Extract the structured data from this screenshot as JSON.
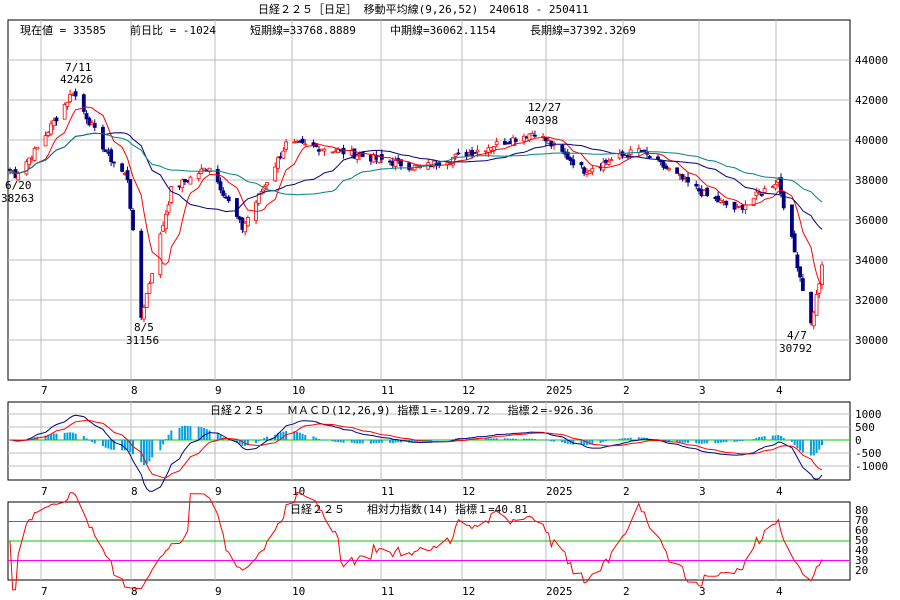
{
  "title": "日経２２５［日足］ 移動平均線(9,26,52)　240618 - 250411",
  "info": {
    "current": "現在値 = 33585",
    "change": "前日比 = -1024",
    "short_ma": "短期線=33768.8889",
    "mid_ma": "中期線=36062.1154",
    "long_ma": "長期線=37392.3269"
  },
  "x_months": [
    "7",
    "8",
    "9",
    "10",
    "11",
    "12",
    "2025",
    "2",
    "3",
    "4"
  ],
  "price_axis": [
    "44000",
    "42000",
    "40000",
    "38000",
    "36000",
    "34000",
    "32000",
    "30000"
  ],
  "macd_axis": [
    "1000",
    "500",
    "0",
    "-500",
    "-1000"
  ],
  "rsi_axis": [
    "80",
    "70",
    "60",
    "50",
    "40",
    "30",
    "20"
  ],
  "annotations": [
    {
      "date": "7/11",
      "value": "42426"
    },
    {
      "date": "6/20",
      "value": "38263"
    },
    {
      "date": "8/5",
      "value": "31156"
    },
    {
      "date": "12/27",
      "value": "40398"
    },
    {
      "date": "4/7",
      "value": "30792"
    }
  ],
  "macd_title": "日経２２５　　ＭＡＣＤ(12,26,9) 指標１=-1209.72　 指標２=-926.36",
  "rsi_title": "日経２２５　　相対力指数(14) 指標１=40.81",
  "colors": {
    "up": "#ff0000",
    "down": "#000080",
    "short_ma": "#ff0000",
    "mid_ma": "#000080",
    "long_ma": "#008080",
    "macd_hist": "#00a0e0",
    "macd_line": "#000080",
    "signal_line": "#ff0000",
    "rsi": "#ff0000",
    "rsi_upper": "#ff00ff",
    "rsi_mid": "#00cc00",
    "grid": "#bdbdbd"
  },
  "chart_data": {
    "type": "line",
    "title": "日経２２５［日足］ 移動平均線(9,26,52)　240618 - 250411",
    "ylim": [
      28000,
      46000
    ],
    "price_keypoints": [
      {
        "date": "2024-06-18",
        "value": 38500
      },
      {
        "date": "2024-06-20",
        "value": 38263
      },
      {
        "date": "2024-06-28",
        "value": 39600
      },
      {
        "date": "2024-07-11",
        "value": 42426
      },
      {
        "date": "2024-07-24",
        "value": 39200
      },
      {
        "date": "2024-07-31",
        "value": 38100
      },
      {
        "date": "2024-08-05",
        "value": 31156
      },
      {
        "date": "2024-08-16",
        "value": 37500
      },
      {
        "date": "2024-08-30",
        "value": 38700
      },
      {
        "date": "2024-09-11",
        "value": 35600
      },
      {
        "date": "2024-09-27",
        "value": 39800
      },
      {
        "date": "2024-10-11",
        "value": 39600
      },
      {
        "date": "2024-11-15",
        "value": 38600
      },
      {
        "date": "2024-12-27",
        "value": 40398
      },
      {
        "date": "2025-01-14",
        "value": 38500
      },
      {
        "date": "2025-02-03",
        "value": 39500
      },
      {
        "date": "2025-02-28",
        "value": 37200
      },
      {
        "date": "2025-03-11",
        "value": 36500
      },
      {
        "date": "2025-03-26",
        "value": 38000
      },
      {
        "date": "2025-04-07",
        "value": 30792
      },
      {
        "date": "2025-04-11",
        "value": 33585
      }
    ],
    "macd": {
      "value": -1209.72,
      "signal": -926.36,
      "ylim": [
        -1500,
        1500
      ]
    },
    "rsi": {
      "value": 40.81,
      "ylim": [
        10,
        90
      ],
      "levels": [
        70,
        50,
        30
      ]
    }
  }
}
